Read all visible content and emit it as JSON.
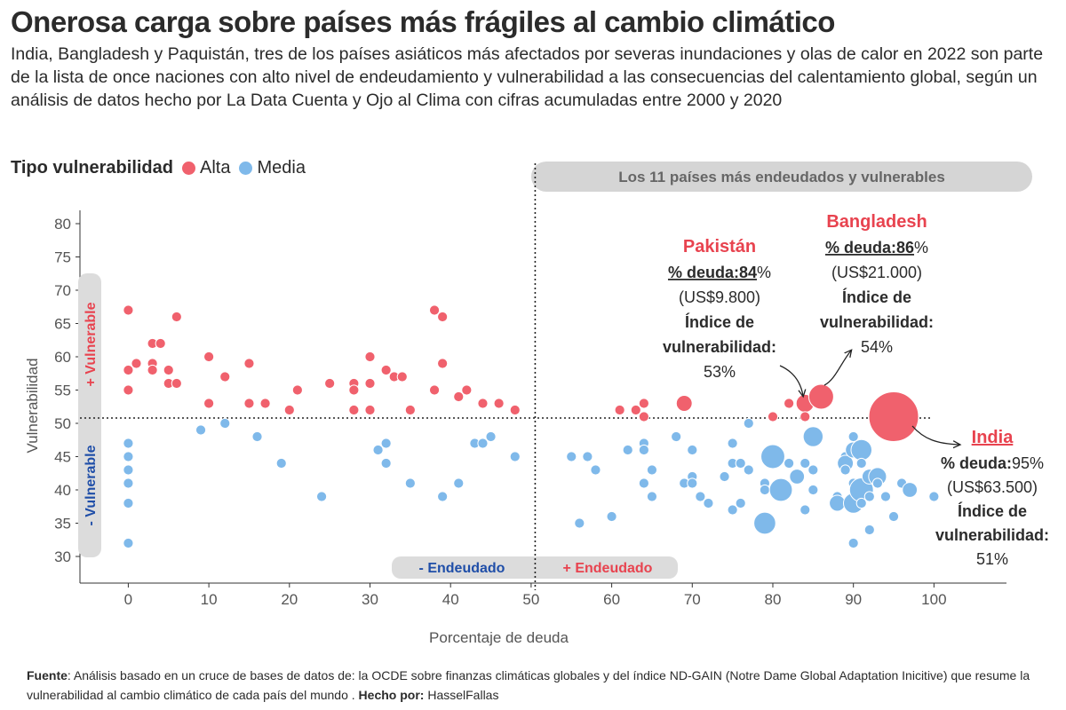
{
  "title": "Onerosa carga sobre países más frágiles al cambio climático",
  "subtitle": "India, Bangladesh y Paquistán, tres de los países asiáticos más afectados por severas inundaciones y olas de calor en 2022 son parte de la lista de once naciones con alto nivel de endeudamiento y vulnerabilidad a las consecuencias del calentamiento global, según un análisis de datos hecho por La Data Cuenta y Ojo al Clima con cifras acumuladas entre 2000 y 2020",
  "legend": {
    "title": "Tipo vulnerabilidad",
    "items": [
      {
        "label": "Alta",
        "color": "#f0616d"
      },
      {
        "label": "Media",
        "color": "#7fb9ea"
      }
    ]
  },
  "banner": "Los 11 países más endeudados y vulnerables",
  "quadrant_labels": {
    "mas_vulnerable": "+ Vulnerable",
    "menos_vulnerable": "- Vulnerable",
    "menos_endeudado": "- Endeudado",
    "mas_endeudado": "+ Endeudado"
  },
  "annotations": {
    "pakistan": {
      "name": "Pakistán",
      "debt_label": "% deuda:",
      "debt_value": "84",
      "pct": "%",
      "amount": "(US$9.800)",
      "index_l1": "Índice de",
      "index_l2": "vulnerabilidad:",
      "index_value": "53%"
    },
    "bangladesh": {
      "name": "Bangladesh",
      "debt_label": "% deuda:",
      "debt_value": "86",
      "pct": "%",
      "amount": "(US$21.000)",
      "index_l1": "Índice de",
      "index_l2": "vulnerabilidad:",
      "index_value": "54%"
    },
    "india": {
      "name": "India",
      "debt_label": "% deuda:",
      "debt_value": "95%",
      "amount": "(US$63.500)",
      "index_l1": "Índice de",
      "index_l2": "vulnerabilidad:",
      "index_value": "51%"
    }
  },
  "source": {
    "label": "Fuente",
    "text": ": Análisis basado en un cruce de bases de datos de: la OCDE sobre finanzas climáticas globales y del índice ND-GAIN (Notre Dame Global Adaptation Inicitive) que resume la vulnerabilidad al cambio climático de cada país del mundo . ",
    "made_by_label": "Hecho por:",
    "made_by": " HasselFallas"
  },
  "chart_data": {
    "type": "scatter",
    "xlabel": "Porcentaje de deuda",
    "ylabel": "Vulnerabilidad",
    "xlim": [
      -6,
      109
    ],
    "ylim": [
      26,
      82
    ],
    "xticks": [
      0,
      10,
      20,
      30,
      40,
      50,
      60,
      70,
      80,
      90,
      100
    ],
    "yticks": [
      30,
      35,
      40,
      45,
      50,
      55,
      60,
      65,
      70,
      75,
      80
    ],
    "threshold_x": 50.5,
    "threshold_y": 50.8,
    "series": [
      {
        "name": "Alta",
        "color": "#f0616d",
        "points": [
          [
            0,
            67,
            1
          ],
          [
            0,
            58,
            1
          ],
          [
            0,
            55,
            1
          ],
          [
            1,
            59,
            1
          ],
          [
            3,
            62,
            1
          ],
          [
            3,
            59,
            1
          ],
          [
            3,
            58,
            1
          ],
          [
            4,
            62,
            1
          ],
          [
            5,
            58,
            1
          ],
          [
            5,
            56,
            1
          ],
          [
            6,
            66,
            1
          ],
          [
            6,
            56,
            1
          ],
          [
            10,
            60,
            1
          ],
          [
            10,
            53,
            1
          ],
          [
            12,
            57,
            1
          ],
          [
            15,
            59,
            1
          ],
          [
            15,
            53,
            1
          ],
          [
            17,
            53,
            1
          ],
          [
            20,
            52,
            1
          ],
          [
            21,
            55,
            1
          ],
          [
            25,
            56,
            1
          ],
          [
            28,
            56,
            1
          ],
          [
            28,
            55,
            1
          ],
          [
            28,
            52,
            1
          ],
          [
            30,
            60,
            1
          ],
          [
            30,
            56,
            1
          ],
          [
            30,
            52,
            1
          ],
          [
            32,
            58,
            1
          ],
          [
            33,
            57,
            1
          ],
          [
            34,
            57,
            1
          ],
          [
            35,
            52,
            1
          ],
          [
            38,
            67,
            1
          ],
          [
            38,
            55,
            1
          ],
          [
            39,
            66,
            1
          ],
          [
            39,
            59,
            1
          ],
          [
            41,
            54,
            1
          ],
          [
            42,
            55,
            1
          ],
          [
            44,
            53,
            1
          ],
          [
            46,
            53,
            1
          ],
          [
            48,
            52,
            1
          ],
          [
            61,
            52,
            1
          ],
          [
            63,
            52,
            1
          ],
          [
            64,
            53,
            1
          ],
          [
            64,
            51,
            1
          ],
          [
            69,
            53,
            1.6
          ],
          [
            80,
            51,
            1
          ],
          [
            82,
            53,
            1
          ],
          [
            84,
            53,
            1.8
          ],
          [
            84,
            51,
            1
          ],
          [
            86,
            54,
            2.5
          ],
          [
            95,
            51,
            5
          ]
        ]
      },
      {
        "name": "Media",
        "color": "#7fb9ea",
        "points": [
          [
            0,
            47,
            1
          ],
          [
            0,
            45,
            1
          ],
          [
            0,
            43,
            1
          ],
          [
            0,
            41,
            1
          ],
          [
            0,
            38,
            1
          ],
          [
            0,
            32,
            1
          ],
          [
            9,
            49,
            1
          ],
          [
            12,
            50,
            1
          ],
          [
            16,
            48,
            1
          ],
          [
            19,
            44,
            1
          ],
          [
            24,
            39,
            1
          ],
          [
            31,
            46,
            1
          ],
          [
            32,
            47,
            1
          ],
          [
            32,
            44,
            1
          ],
          [
            35,
            41,
            1
          ],
          [
            39,
            39,
            1
          ],
          [
            41,
            41,
            1
          ],
          [
            43,
            47,
            1
          ],
          [
            44,
            47,
            1
          ],
          [
            45,
            48,
            1
          ],
          [
            48,
            45,
            1
          ],
          [
            55,
            45,
            1
          ],
          [
            56,
            35,
            1
          ],
          [
            57,
            45,
            1
          ],
          [
            58,
            43,
            1
          ],
          [
            60,
            36,
            1
          ],
          [
            62,
            46,
            1
          ],
          [
            64,
            47,
            1
          ],
          [
            64,
            46,
            1
          ],
          [
            64,
            41,
            1
          ],
          [
            65,
            43,
            1
          ],
          [
            65,
            39,
            1
          ],
          [
            68,
            48,
            1
          ],
          [
            69,
            41,
            1
          ],
          [
            70,
            46,
            1
          ],
          [
            70,
            42,
            1
          ],
          [
            70,
            41,
            1
          ],
          [
            71,
            39,
            1
          ],
          [
            72,
            38,
            1
          ],
          [
            74,
            42,
            1
          ],
          [
            75,
            44,
            1
          ],
          [
            75,
            37,
            1
          ],
          [
            75,
            47,
            1
          ],
          [
            76,
            44,
            1
          ],
          [
            76,
            38,
            1
          ],
          [
            77,
            43,
            1
          ],
          [
            77,
            50,
            1
          ],
          [
            79,
            41,
            1
          ],
          [
            79,
            40,
            1
          ],
          [
            79,
            35,
            2.2
          ],
          [
            80,
            45,
            2.4
          ],
          [
            81,
            40,
            2.3
          ],
          [
            82,
            44,
            1
          ],
          [
            83,
            42,
            1.5
          ],
          [
            84,
            44,
            1
          ],
          [
            84,
            37,
            1
          ],
          [
            85,
            43,
            1
          ],
          [
            85,
            40,
            1
          ],
          [
            85,
            48,
            2.0
          ],
          [
            88,
            39,
            1
          ],
          [
            88,
            38,
            1.6
          ],
          [
            89,
            45,
            1
          ],
          [
            89,
            44,
            1.6
          ],
          [
            89,
            43,
            1
          ],
          [
            90,
            48,
            1
          ],
          [
            90,
            46,
            1.6
          ],
          [
            90,
            41,
            1
          ],
          [
            90,
            38,
            2.0
          ],
          [
            90,
            32,
            1
          ],
          [
            91,
            46,
            2.1
          ],
          [
            91,
            44,
            1
          ],
          [
            91,
            40,
            2.4
          ],
          [
            91,
            38,
            1
          ],
          [
            92,
            42,
            1.5
          ],
          [
            92,
            39,
            1
          ],
          [
            92,
            34,
            1
          ],
          [
            93,
            42,
            1.8
          ],
          [
            93,
            41,
            1
          ],
          [
            94,
            39,
            1
          ],
          [
            95,
            36,
            1
          ],
          [
            96,
            41,
            1
          ],
          [
            97,
            40,
            1.5
          ],
          [
            100,
            39,
            1
          ]
        ]
      }
    ]
  }
}
